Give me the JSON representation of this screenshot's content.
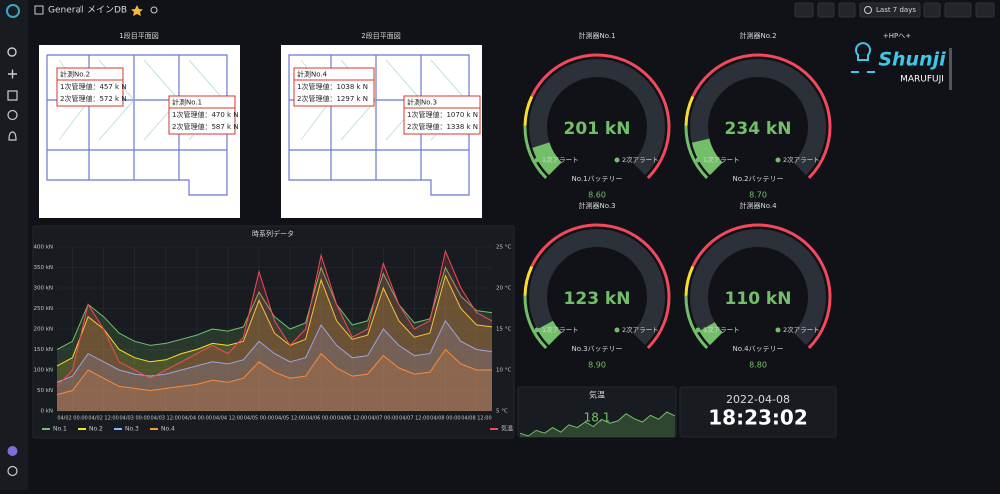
{
  "topbar": {
    "breadcrumb": [
      "General",
      "メインDB"
    ],
    "separator": "/",
    "time_range": "Last 7 days"
  },
  "floorplans": [
    {
      "title": "1段目平面図",
      "callouts": [
        {
          "name": "計測No.2",
          "lines": [
            "1次管理値：457 k N",
            "2次管理値：572 k N"
          ]
        },
        {
          "name": "計測No.1",
          "lines": [
            "1次管理値：470 k N",
            "2次管理値：587 k N"
          ]
        }
      ]
    },
    {
      "title": "2段目平面図",
      "callouts": [
        {
          "name": "計測No.4",
          "lines": [
            "1次管理値：1038 k N",
            "2次管理値：1297 k N"
          ]
        },
        {
          "name": "計測No.3",
          "lines": [
            "1次管理値：1070 k N",
            "2次管理値：1338 k N"
          ]
        }
      ]
    }
  ],
  "chart_data": {
    "type": "line",
    "title": "時系列データ",
    "xticks": [
      "04/02 00:00",
      "04/02 12:00",
      "04/03 00:00",
      "04/03 12:00",
      "04/04 00:00",
      "04/04 12:00",
      "04/05 00:00",
      "04/05 12:00",
      "04/06 00:00",
      "04/06 12:00",
      "04/07 00:00",
      "04/07 12:00",
      "04/08 00:00",
      "04/08 12:00"
    ],
    "ylim": [
      0,
      400
    ],
    "yticks": [
      {
        "value": 0,
        "label": "0 kN"
      },
      {
        "value": 50,
        "label": "50 kN"
      },
      {
        "value": 100,
        "label": "100 kN"
      },
      {
        "value": 150,
        "label": "150 kN"
      },
      {
        "value": 200,
        "label": "200 kN"
      },
      {
        "value": 250,
        "label": "250 kN"
      },
      {
        "value": 300,
        "label": "300 kN"
      },
      {
        "value": 350,
        "label": "350 kN"
      },
      {
        "value": 400,
        "label": "400 kN"
      }
    ],
    "y2lim": [
      5,
      25
    ],
    "y2ticks": [
      {
        "value": 5,
        "label": "5 °C"
      },
      {
        "value": 10,
        "label": "10 °C"
      },
      {
        "value": 15,
        "label": "15 °C"
      },
      {
        "value": 20,
        "label": "20 °C"
      },
      {
        "value": 25,
        "label": "25 °C"
      }
    ],
    "grid": true,
    "series": [
      {
        "name": "No.1",
        "color": "#73bf69",
        "values": [
          150,
          170,
          260,
          230,
          190,
          170,
          160,
          165,
          175,
          185,
          200,
          195,
          205,
          290,
          230,
          200,
          215,
          350,
          260,
          210,
          220,
          335,
          260,
          215,
          225,
          350,
          280,
          245,
          240
        ]
      },
      {
        "name": "No.2",
        "color": "#fade2a",
        "values": [
          110,
          130,
          230,
          200,
          150,
          130,
          120,
          125,
          140,
          150,
          165,
          160,
          170,
          270,
          190,
          160,
          175,
          320,
          220,
          175,
          185,
          300,
          220,
          180,
          190,
          330,
          250,
          210,
          205
        ]
      },
      {
        "name": "No.3",
        "color": "#8ab8ff",
        "values": [
          70,
          85,
          140,
          120,
          100,
          90,
          85,
          90,
          100,
          110,
          120,
          115,
          125,
          170,
          140,
          120,
          130,
          210,
          160,
          130,
          135,
          200,
          160,
          135,
          140,
          220,
          170,
          150,
          145
        ]
      },
      {
        "name": "No.4",
        "color": "#ff9830",
        "values": [
          40,
          50,
          100,
          80,
          60,
          55,
          50,
          55,
          60,
          65,
          75,
          70,
          80,
          120,
          95,
          80,
          85,
          140,
          105,
          85,
          90,
          135,
          105,
          90,
          95,
          150,
          115,
          100,
          100
        ]
      },
      {
        "name": "気温",
        "color": "#f2495c",
        "axis": "y2",
        "values": [
          8,
          10,
          18,
          15,
          11,
          10,
          9,
          10,
          11,
          12,
          13,
          12,
          14,
          22,
          16,
          13,
          15,
          24,
          18,
          14,
          15,
          23,
          18,
          15,
          16,
          24.5,
          20,
          17,
          16
        ]
      }
    ]
  },
  "gauge_scale": {
    "min": 0,
    "max": 2000,
    "thresholds": [
      {
        "value": 0,
        "color": "#73bf69"
      },
      {
        "value": 340,
        "color": "#fade2a"
      },
      {
        "value": 520,
        "color": "#f2495c"
      }
    ]
  },
  "gauges": [
    {
      "title": "計測器No.1",
      "value": 201,
      "value_label": "201 kN",
      "alerts": [
        "1次アラート",
        "2次アラート"
      ],
      "battery_title": "No.1バッテリー",
      "battery": "8.60"
    },
    {
      "title": "計測器No.2",
      "value": 234,
      "value_label": "234 kN",
      "alerts": [
        "1次アラート",
        "2次アラート"
      ],
      "battery_title": "No.2バッテリー",
      "battery": "8.70"
    },
    {
      "title": "計測器No.3",
      "value": 123,
      "value_label": "123 kN",
      "alerts": [
        "1次アラート",
        "2次アラート"
      ],
      "battery_title": "No.3バッテリー",
      "battery": "8.90"
    },
    {
      "title": "計測器No.4",
      "value": 110,
      "value_label": "110 kN",
      "alerts": [
        "1次アラート",
        "2次アラート"
      ],
      "battery_title": "No.4バッテリー",
      "battery": "8.80"
    }
  ],
  "link": "+HPへ+",
  "logo": {
    "name": "Shunji",
    "sub": "MARUFUJI"
  },
  "temperature": {
    "title": "気温",
    "value": "18.1",
    "sparkline": [
      15,
      14.5,
      15.5,
      15,
      16,
      15.2,
      16.5,
      16,
      17,
      16.2,
      17.5,
      16.8,
      17.2,
      18.5,
      17.6,
      17,
      18.2,
      17.5,
      18.8,
      18.1
    ]
  },
  "clock": {
    "date": "2022-04-08",
    "time": "18:23:02"
  }
}
